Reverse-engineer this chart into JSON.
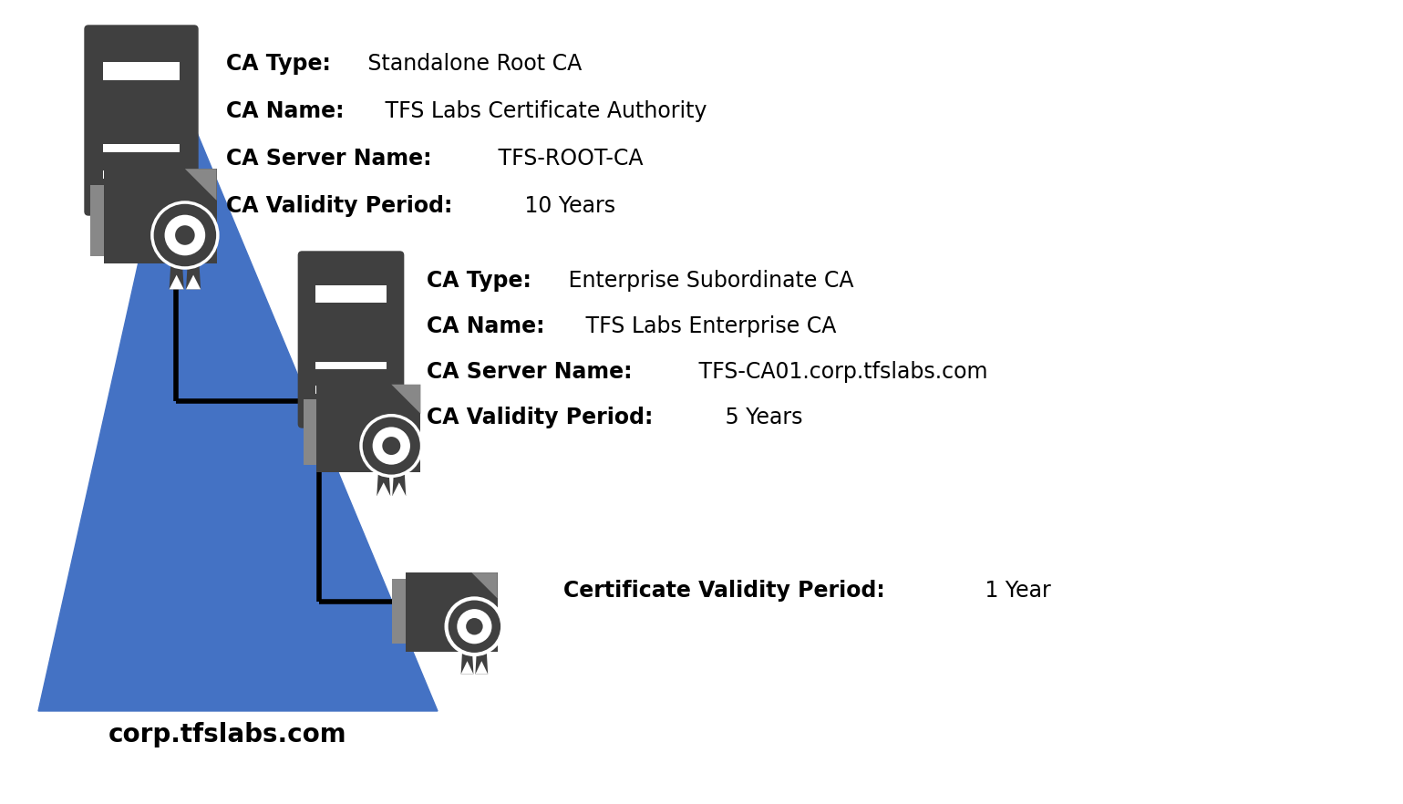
{
  "background_color": "#ffffff",
  "root_ca": {
    "type_label": "CA Type:",
    "type_value": " Standalone Root CA",
    "name_label": "CA Name:",
    "name_value": " TFS Labs Certificate Authority",
    "server_label": "CA Server Name:",
    "server_value": " TFS-ROOT-CA",
    "validity_label": "CA Validity Period:",
    "validity_value": " 10 Years"
  },
  "sub_ca": {
    "type_label": "CA Type:",
    "type_value": " Enterprise Subordinate CA",
    "name_label": "CA Name:",
    "name_value": " TFS Labs Enterprise CA",
    "server_label": "CA Server Name:",
    "server_value": " TFS-CA01.corp.tfslabs.com",
    "validity_label": "CA Validity Period:",
    "validity_value": " 5 Years"
  },
  "cert": {
    "validity_label": "Certificate Validity Period:",
    "validity_value": " 1 Year"
  },
  "triangle_label": "corp.tfslabs.com",
  "icon_color": "#404040",
  "line_color": "#000000",
  "triangle_color": "#4472C4",
  "fontsize": 17
}
